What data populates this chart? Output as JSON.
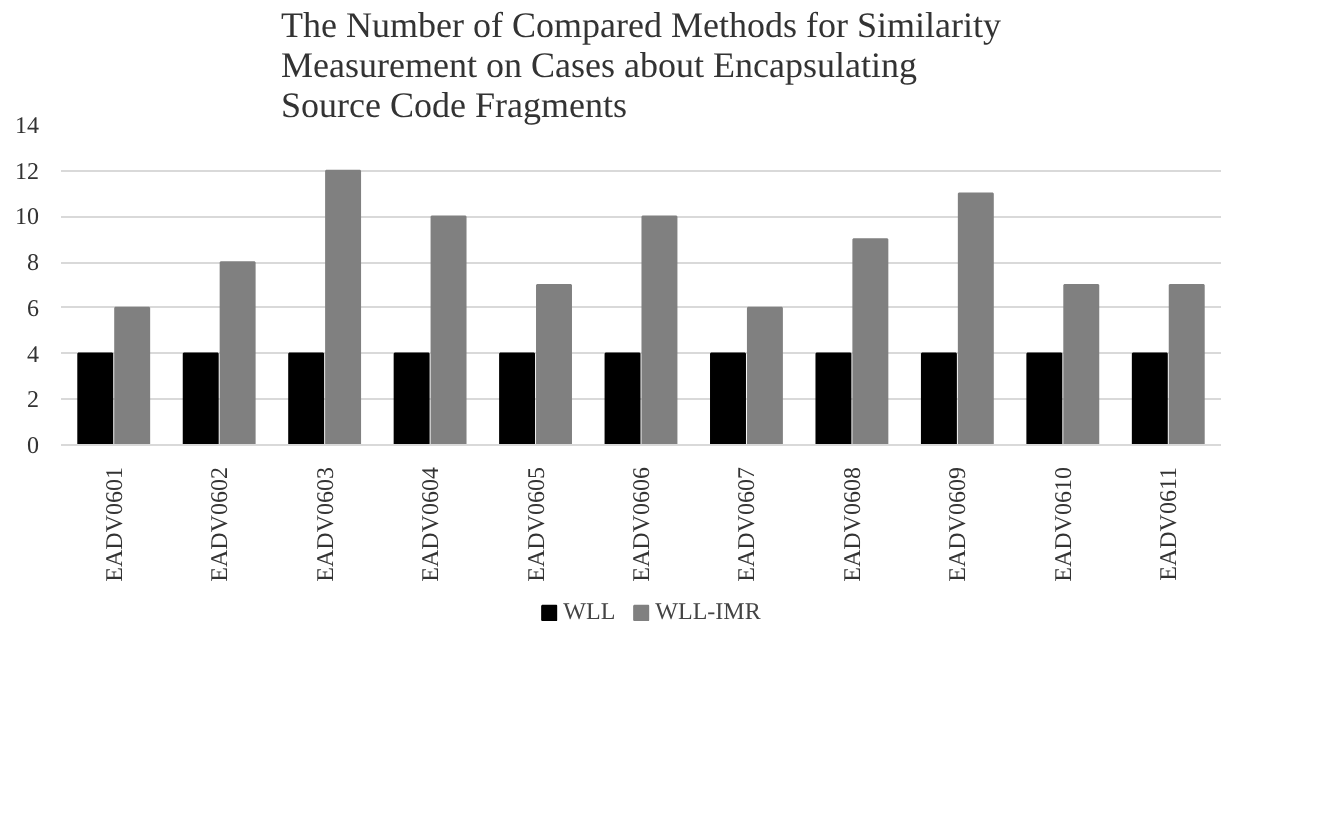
{
  "chart_data": {
    "type": "bar",
    "title": "The Number of Compared Methods for Similarity\nMeasurement on Cases about Encapsulating\nSource Code Fragments",
    "categories": [
      "EADV0601",
      "EADV0602",
      "EADV0603",
      "EADV0604",
      "EADV0605",
      "EADV0606",
      "EADV0607",
      "EADV0608",
      "EADV0609",
      "EADV0610",
      "EADV0611"
    ],
    "series": [
      {
        "name": "WLL",
        "color": "#000000",
        "values": [
          4,
          4,
          4,
          4,
          4,
          4,
          4,
          4,
          4,
          4,
          4
        ]
      },
      {
        "name": "WLL-IMR",
        "color": "#808080",
        "values": [
          6,
          8,
          12,
          10,
          7,
          10,
          6,
          9,
          11,
          7,
          7
        ]
      }
    ],
    "ylim": [
      0,
      14
    ],
    "yticks": [
      0,
      2,
      4,
      6,
      8,
      10,
      12,
      14
    ],
    "grid": "y",
    "legend": "bottom"
  }
}
